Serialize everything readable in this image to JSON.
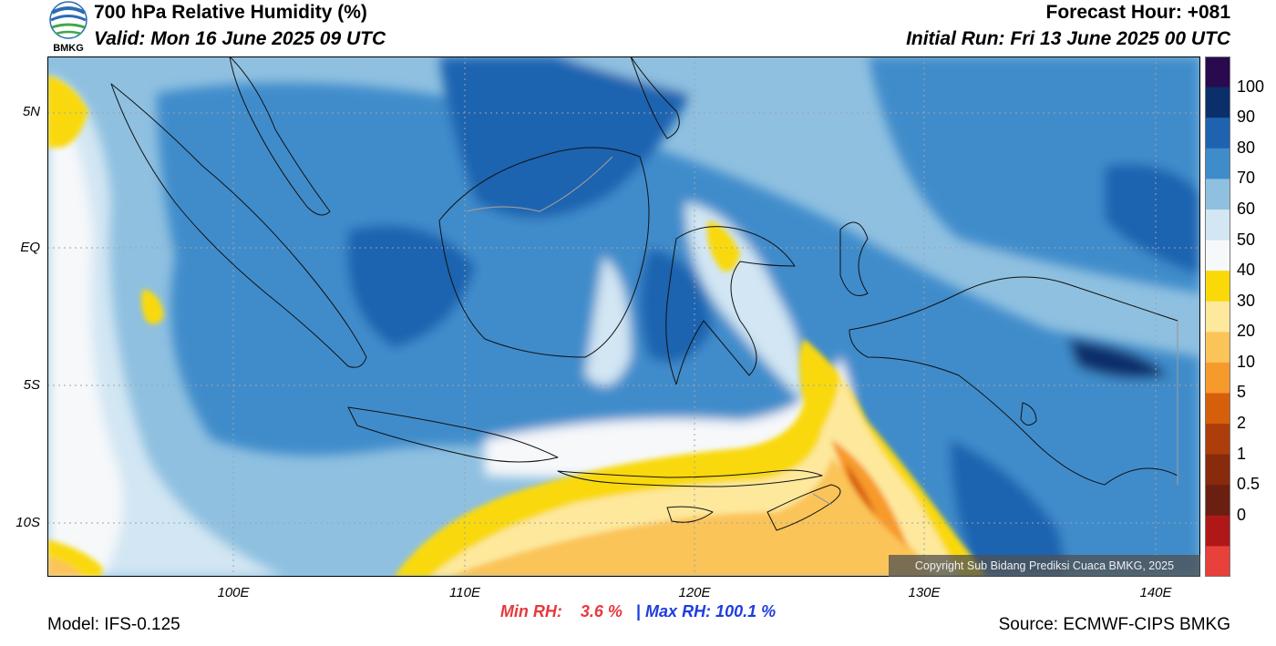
{
  "header": {
    "title": "700 hPa Relative Humidity (%)",
    "valid": "Valid: Mon 16 June 2025 09 UTC",
    "forecast_hour": "Forecast Hour: +081",
    "initial_run": "Initial Run: Fri 13 June 2025 00 UTC"
  },
  "logo": {
    "text": "BMKG",
    "icon": "bmkg-logo-icon"
  },
  "axes": {
    "lat_labels": [
      "5N",
      "EQ",
      "5S",
      "10S"
    ],
    "lon_labels": [
      "100E",
      "110E",
      "120E",
      "130E",
      "140E"
    ]
  },
  "colorbar": {
    "labels": [
      "100",
      "90",
      "80",
      "70",
      "60",
      "50",
      "40",
      "30",
      "20",
      "10",
      "5",
      "2",
      "1",
      "0.5",
      "0"
    ],
    "colors": [
      "#2a0a4e",
      "#0b2f6b",
      "#1f63b0",
      "#3f8ccb",
      "#8fc0e0",
      "#d2e6f3",
      "#f6f8fa",
      "#f9d908",
      "#fde89c",
      "#fbc458",
      "#f79a2c",
      "#d65f0c",
      "#ad3d0a",
      "#882a0c",
      "#6b1f10",
      "#b01818",
      "#e8403a"
    ]
  },
  "stats": {
    "min_label": "Min RH:",
    "min_value": "3.6 %",
    "separator": "|",
    "max_label": "Max RH: 100.1 %"
  },
  "footer": {
    "model": "Model: IFS-0.125",
    "source": "Source: ECMWF-CIPS BMKG",
    "copyright": "Copyright Sub Bidang Prediksi Cuaca BMKG, 2025"
  }
}
